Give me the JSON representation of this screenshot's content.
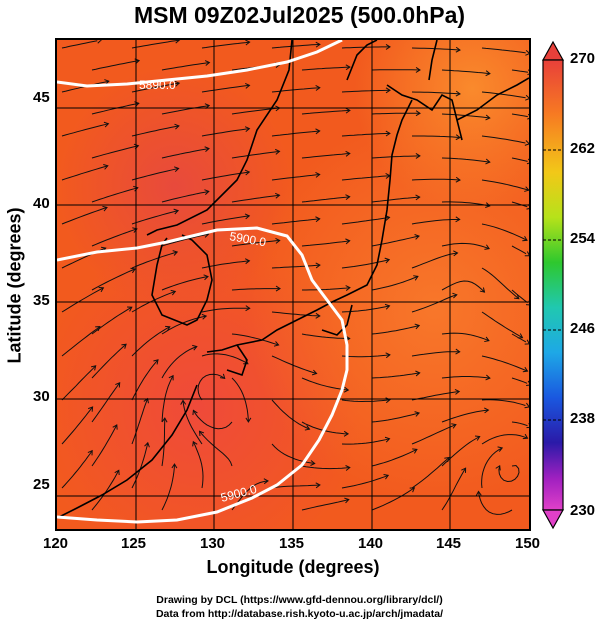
{
  "title": "MSM 09Z02Jul2025 (500.0hPa)",
  "xlabel": "Longitude (degrees)",
  "ylabel": "Latitude  (degrees)",
  "credits": {
    "line1": "Drawing by DCL (https://www.gfd-dennou.org/library/dcl/)",
    "line2": "Data from http://database.rish.kyoto-u.ac.jp/arch/jmadata/"
  },
  "map": {
    "lon_range": [
      120,
      150
    ],
    "lat_range": [
      22.4,
      47.6
    ],
    "x_ticks": [
      "120",
      "125",
      "130",
      "135",
      "140",
      "145",
      "150"
    ],
    "y_ticks": [
      "25",
      "30",
      "35",
      "40",
      "45"
    ],
    "contour_labels": [
      "5900.0",
      "5900.0",
      "5890.0"
    ],
    "contour_color": "#ffffff",
    "background_color": "#f25a1e"
  },
  "colorbar": {
    "labels": [
      "270",
      "262",
      "254",
      "246",
      "238",
      "230"
    ],
    "range": [
      230,
      270
    ]
  }
}
